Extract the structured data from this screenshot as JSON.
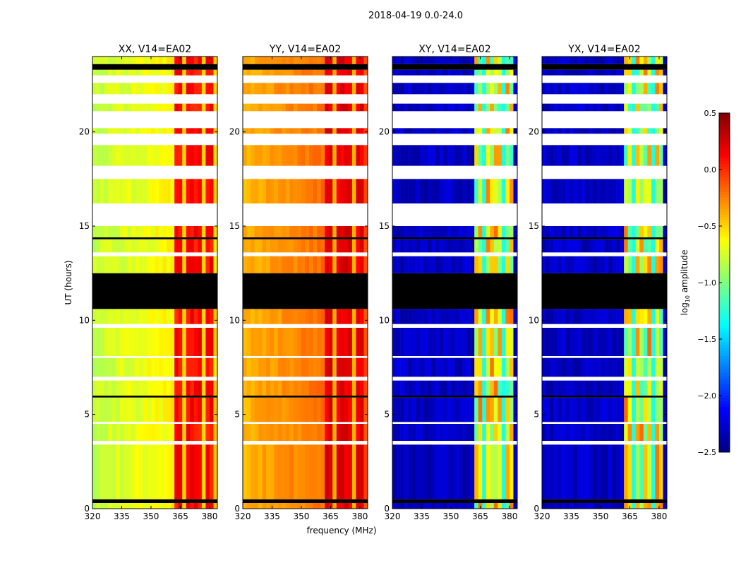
{
  "chart_data": {
    "type": "heatmap",
    "title": "2018-04-19 0.0-24.0",
    "xlabel": "frequency (MHz)",
    "ylabel": "UT (hours)",
    "xlim": [
      320,
      384
    ],
    "ylim": [
      0,
      24
    ],
    "xticks": [
      "320",
      "335",
      "350",
      "365",
      "380"
    ],
    "yticks": [
      "0",
      "5",
      "10",
      "15",
      "20"
    ],
    "panels": [
      {
        "title": "XX, V14=EA02",
        "baseline": -0.8,
        "rfi": 0.1,
        "noise": 0.15
      },
      {
        "title": "YY, V14=EA02",
        "baseline": -0.4,
        "rfi": 0.2,
        "noise": 0.12
      },
      {
        "title": "XY, V14=EA02",
        "baseline": -2.3,
        "rfi": -0.7,
        "noise": 0.7
      },
      {
        "title": "YX, V14=EA02",
        "baseline": -2.3,
        "rfi": -0.7,
        "noise": 0.7
      }
    ],
    "rfi_band_mhz": [
      362,
      381
    ],
    "time_segments": [
      [
        0,
        0.3,
        "data"
      ],
      [
        0.3,
        0.5,
        "flagged"
      ],
      [
        0.5,
        3.4,
        "data"
      ],
      [
        3.4,
        3.6,
        "gap"
      ],
      [
        3.6,
        4.5,
        "data"
      ],
      [
        4.5,
        4.6,
        "gap"
      ],
      [
        4.6,
        5.9,
        "data"
      ],
      [
        5.9,
        6.0,
        "flagged"
      ],
      [
        6.0,
        6.8,
        "data"
      ],
      [
        6.8,
        7.0,
        "gap"
      ],
      [
        7.0,
        8.0,
        "data"
      ],
      [
        8.0,
        8.1,
        "gap"
      ],
      [
        8.1,
        9.6,
        "data"
      ],
      [
        9.6,
        9.8,
        "gap"
      ],
      [
        9.8,
        10.6,
        "data"
      ],
      [
        10.6,
        12.5,
        "flagged"
      ],
      [
        12.5,
        13.4,
        "data"
      ],
      [
        13.4,
        13.6,
        "gap"
      ],
      [
        13.6,
        14.3,
        "data"
      ],
      [
        14.3,
        14.4,
        "flagged"
      ],
      [
        14.4,
        15.0,
        "data"
      ],
      [
        15.0,
        16.2,
        "gap"
      ],
      [
        16.2,
        17.5,
        "data"
      ],
      [
        17.5,
        18.2,
        "gap"
      ],
      [
        18.2,
        19.3,
        "data"
      ],
      [
        19.3,
        19.9,
        "gap"
      ],
      [
        19.9,
        20.2,
        "data"
      ],
      [
        20.2,
        21.1,
        "gap"
      ],
      [
        21.1,
        21.5,
        "data"
      ],
      [
        21.5,
        22.0,
        "gap"
      ],
      [
        22.0,
        22.6,
        "data"
      ],
      [
        22.6,
        23.0,
        "gap"
      ],
      [
        23.0,
        23.3,
        "data"
      ],
      [
        23.3,
        23.6,
        "flagged"
      ],
      [
        23.6,
        24,
        "data"
      ]
    ],
    "colorbar": {
      "label": "log10 amplitude",
      "label_main": "log",
      "label_sub": "10",
      "label_rest": " amplitude",
      "range": [
        -2.5,
        0.5
      ],
      "ticks": [
        "0.5",
        "0.0",
        "−0.5",
        "−1.0",
        "−1.5",
        "−2.0",
        "−2.5"
      ],
      "colormap": "jet"
    }
  }
}
